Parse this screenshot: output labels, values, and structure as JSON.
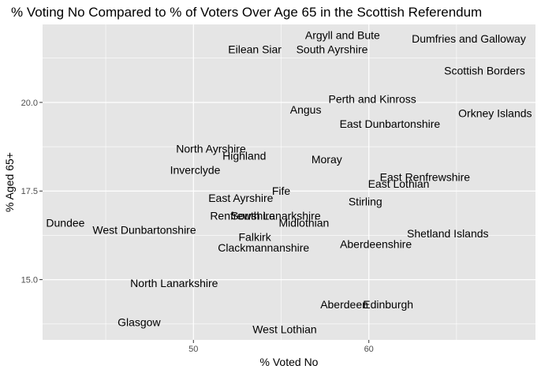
{
  "chart_data": {
    "type": "scatter",
    "title": "% Voting No Compared to % of Voters Over Age 65 in the Scottish Referendum",
    "xlabel": "% Voted No",
    "ylabel": "% Aged 65+",
    "xlim": [
      41.4,
      69.5
    ],
    "ylim": [
      13.3,
      22.2
    ],
    "x_ticks": [
      {
        "value": 50,
        "label": "50"
      },
      {
        "value": 60,
        "label": "60"
      }
    ],
    "y_ticks": [
      {
        "value": 15,
        "label": "15.0"
      },
      {
        "value": 17.5,
        "label": "17.5"
      },
      {
        "value": 20,
        "label": "20.0"
      }
    ],
    "grid": true,
    "background": "#e5e5e5",
    "grid_color": "#ffffff",
    "points": [
      {
        "label": "Argyll and Bute",
        "x": 58.5,
        "y": 21.9
      },
      {
        "label": "Dumfries and Galloway",
        "x": 65.7,
        "y": 21.8
      },
      {
        "label": "Eilean Siar",
        "x": 53.5,
        "y": 21.5
      },
      {
        "label": "South Ayrshire",
        "x": 57.9,
        "y": 21.5
      },
      {
        "label": "Scottish Borders",
        "x": 66.6,
        "y": 20.9
      },
      {
        "label": "Perth and Kinross",
        "x": 60.2,
        "y": 20.1
      },
      {
        "label": "Angus",
        "x": 56.4,
        "y": 19.8
      },
      {
        "label": "Orkney Islands",
        "x": 67.2,
        "y": 19.7
      },
      {
        "label": "East Dunbartonshire",
        "x": 61.2,
        "y": 19.4
      },
      {
        "label": "North Ayrshire",
        "x": 51.0,
        "y": 18.7
      },
      {
        "label": "Highland",
        "x": 52.9,
        "y": 18.5
      },
      {
        "label": "Moray",
        "x": 57.6,
        "y": 18.4
      },
      {
        "label": "Inverclyde",
        "x": 50.1,
        "y": 18.1
      },
      {
        "label": "East Renfrewshire",
        "x": 63.2,
        "y": 17.9
      },
      {
        "label": "East Lothian",
        "x": 61.7,
        "y": 17.7
      },
      {
        "label": "Fife",
        "x": 55.0,
        "y": 17.5
      },
      {
        "label": "East Ayrshire",
        "x": 52.7,
        "y": 17.3
      },
      {
        "label": "Stirling",
        "x": 59.8,
        "y": 17.2
      },
      {
        "label": "Renfrewshire",
        "x": 52.8,
        "y": 16.8
      },
      {
        "label": "South Lanarkshire",
        "x": 54.7,
        "y": 16.8
      },
      {
        "label": "Midlothian",
        "x": 56.3,
        "y": 16.6
      },
      {
        "label": "Dundee",
        "x": 42.7,
        "y": 16.6
      },
      {
        "label": "West Dunbartonshire",
        "x": 47.2,
        "y": 16.4
      },
      {
        "label": "Shetland Islands",
        "x": 64.5,
        "y": 16.3
      },
      {
        "label": "Falkirk",
        "x": 53.5,
        "y": 16.2
      },
      {
        "label": "Aberdeenshire",
        "x": 60.4,
        "y": 16.0
      },
      {
        "label": "Clackmannanshire",
        "x": 54.0,
        "y": 15.9
      },
      {
        "label": "North Lanarkshire",
        "x": 48.9,
        "y": 14.9
      },
      {
        "label": "Aberdeen",
        "x": 58.6,
        "y": 14.3
      },
      {
        "label": "Edinburgh",
        "x": 61.1,
        "y": 14.3
      },
      {
        "label": "Glasgow",
        "x": 46.9,
        "y": 13.8
      },
      {
        "label": "West Lothian",
        "x": 55.2,
        "y": 13.6
      }
    ]
  }
}
